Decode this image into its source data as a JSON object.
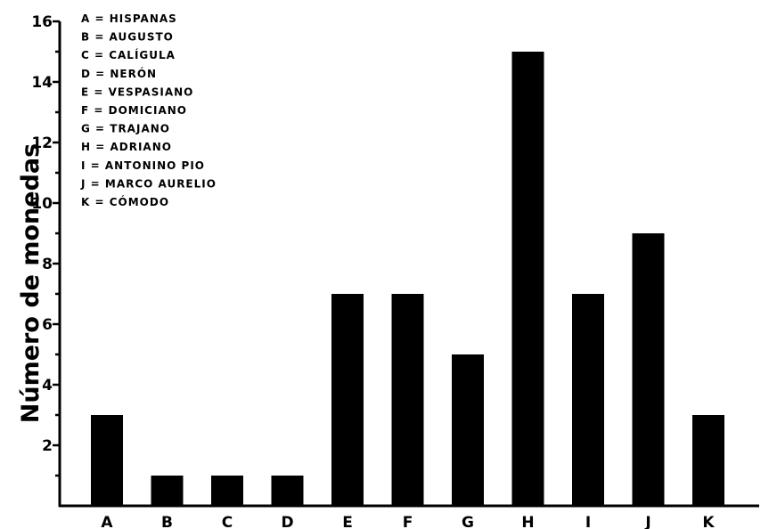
{
  "chart_data": {
    "type": "bar",
    "categories": [
      "A",
      "B",
      "C",
      "D",
      "E",
      "F",
      "G",
      "H",
      "I",
      "J",
      "K"
    ],
    "values": [
      3,
      1,
      1,
      1,
      7,
      7,
      5,
      15,
      7,
      9,
      3
    ],
    "xlabel": "",
    "ylabel": "Número de monedas",
    "ylim": [
      0,
      16
    ],
    "yticks": [
      2,
      4,
      6,
      8,
      10,
      12,
      14,
      16
    ],
    "legend": {
      "placement": "top-left",
      "entries": [
        "A = HISPANAS",
        "B = AUGUSTO",
        "C = CALÍGULA",
        "D = NERÓN",
        "E = VESPASIANO",
        "F = DOMICIANO",
        "G = TRAJANO",
        "H = ADRIANO",
        "I = ANTONINO PIO",
        "J = MARCO AURELIO",
        "K = CÓMODO"
      ]
    },
    "colors": {
      "bar": "#000000",
      "background": "#ffffff"
    }
  }
}
